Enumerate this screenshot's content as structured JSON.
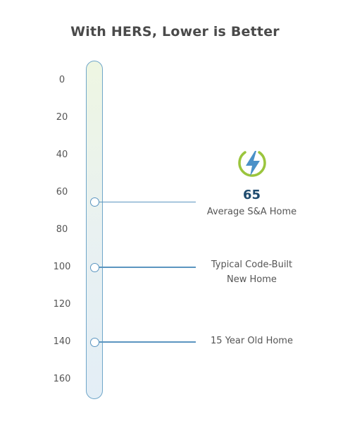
{
  "title": "With HERS, Lower is Better",
  "chart_data": {
    "type": "scale",
    "scale_ticks": [
      "0",
      "20",
      "40",
      "60",
      "80",
      "100",
      "120",
      "140",
      "160"
    ],
    "range": [
      0,
      160
    ],
    "markers": [
      {
        "value": 65,
        "value_label": "65",
        "label": "Average S&A Home",
        "highlight": true
      },
      {
        "value": 100,
        "label": "Typical Code-Built New Home"
      },
      {
        "value": 140,
        "label": "15 Year Old Home"
      }
    ]
  },
  "labels": {
    "highlight_score": "65",
    "average_home": "Average S&A Home",
    "typical_line1": "Typical Code-Built",
    "typical_line2": "New Home",
    "old_home": "15 Year Old Home"
  },
  "icon": "lightning-bolt-icon",
  "colors": {
    "scale_border": "#6fa6c9",
    "marker": "#5b95c0",
    "score": "#1f4b6e",
    "icon_ring": "#9bc53d",
    "icon_bolt": "#4a90c8"
  }
}
